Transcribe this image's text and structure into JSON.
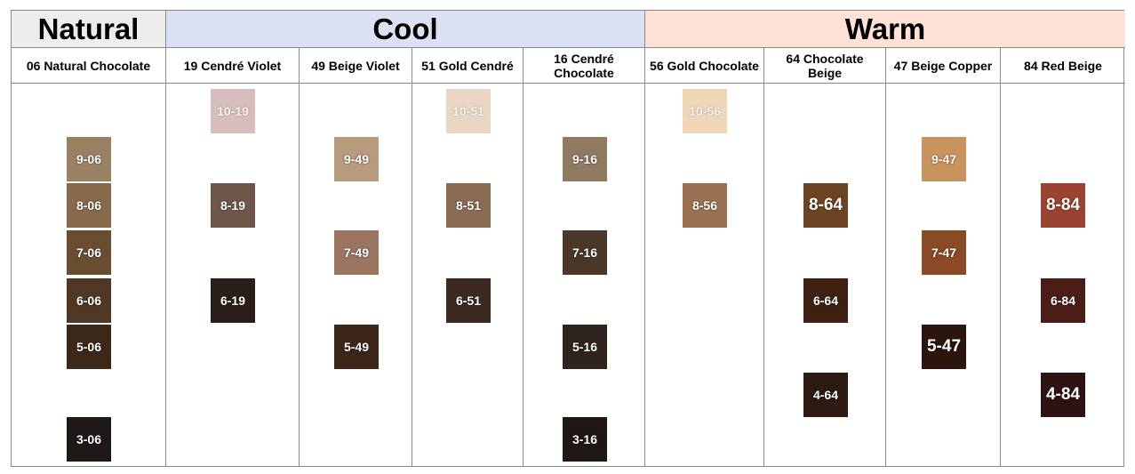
{
  "groups": [
    {
      "label": "Natural",
      "color": "#ededed"
    },
    {
      "label": "Cool",
      "color": "#dbe0f2"
    },
    {
      "label": "Warm",
      "color": "#fde0d6"
    }
  ],
  "columns": [
    {
      "label": "06 Natural Chocolate",
      "swatches": [
        {
          "code": "9-06",
          "level": 9,
          "color": "#9a8163"
        },
        {
          "code": "8-06",
          "level": 8,
          "color": "#86694a"
        },
        {
          "code": "7-06",
          "level": 7,
          "color": "#6a4d31"
        },
        {
          "code": "6-06",
          "level": 6,
          "color": "#503723"
        },
        {
          "code": "5-06",
          "level": 5,
          "color": "#3c2819"
        },
        {
          "code": "3-06",
          "level": 3,
          "color": "#1e1916"
        }
      ]
    },
    {
      "label": "19 Cendré Violet",
      "swatches": [
        {
          "code": "10-19",
          "level": 10,
          "color": "#d7bdbb"
        },
        {
          "code": "8-19",
          "level": 8,
          "color": "#6e5748"
        },
        {
          "code": "6-19",
          "level": 6,
          "color": "#2b1d19"
        }
      ]
    },
    {
      "label": "49 Beige Violet",
      "swatches": [
        {
          "code": "9-49",
          "level": 9,
          "color": "#b89a7e"
        },
        {
          "code": "7-49",
          "level": 7,
          "color": "#9b7560"
        },
        {
          "code": "5-49",
          "level": 5,
          "color": "#3e2519"
        }
      ]
    },
    {
      "label": "51 Gold Cendré",
      "swatches": [
        {
          "code": "10-51",
          "level": 10,
          "color": "#ead6c4"
        },
        {
          "code": "8-51",
          "level": 8,
          "color": "#8a6b54"
        },
        {
          "code": "6-51",
          "level": 6,
          "color": "#3b2a20"
        }
      ]
    },
    {
      "label": "16 Cendré Chocolate",
      "swatches": [
        {
          "code": "9-16",
          "level": 9,
          "color": "#8f7a62"
        },
        {
          "code": "7-16",
          "level": 7,
          "color": "#4a3727"
        },
        {
          "code": "5-16",
          "level": 5,
          "color": "#2e241d"
        },
        {
          "code": "3-16",
          "level": 3,
          "color": "#1e1714"
        }
      ]
    },
    {
      "label": "56 Gold Chocolate",
      "swatches": [
        {
          "code": "10-56",
          "level": 10,
          "color": "#efd7b8"
        },
        {
          "code": "8-56",
          "level": 8,
          "color": "#9a7150"
        }
      ]
    },
    {
      "label": "64 Chocolate Beige",
      "swatches": [
        {
          "code": "8-64",
          "level": 8,
          "color": "#6b4424",
          "big": true
        },
        {
          "code": "6-64",
          "level": 6,
          "color": "#3f2113"
        },
        {
          "code": "4-64",
          "level": 4,
          "color": "#2c1a13"
        }
      ]
    },
    {
      "label": "47 Beige Copper",
      "swatches": [
        {
          "code": "9-47",
          "level": 9,
          "color": "#c9935e"
        },
        {
          "code": "7-47",
          "level": 7,
          "color": "#8b4a25"
        },
        {
          "code": "5-47",
          "level": 5,
          "color": "#2c150c",
          "big": true
        }
      ]
    },
    {
      "label": "84 Red Beige",
      "swatches": [
        {
          "code": "8-84",
          "level": 8,
          "color": "#9a4332",
          "big": true
        },
        {
          "code": "6-84",
          "level": 6,
          "color": "#4c1c16"
        },
        {
          "code": "4-84",
          "level": 4,
          "color": "#2f1212",
          "big": true
        }
      ]
    }
  ]
}
